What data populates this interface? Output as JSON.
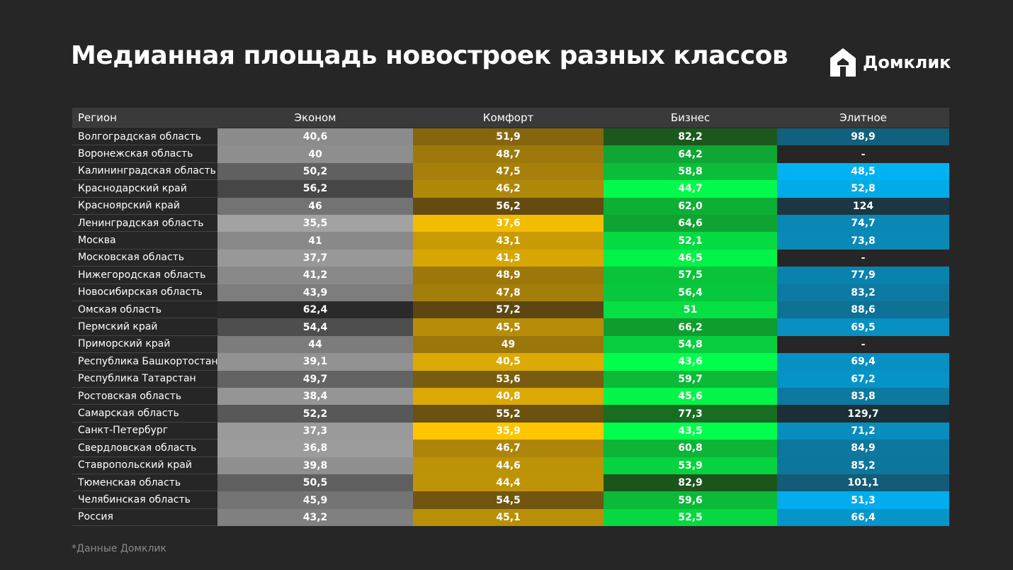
{
  "header": {
    "title": "Медианная площадь новостроек разных классов",
    "logo": "Домклик"
  },
  "table": {
    "columns": [
      "Регион",
      "Эконом",
      "Комфорт",
      "Бизнес",
      "Элитное"
    ],
    "rows": [
      [
        "Волгоградская область",
        "40,6",
        "51,9",
        "82,2",
        "98,9"
      ],
      [
        "Воронежская область",
        "40",
        "48,7",
        "64,2",
        "-"
      ],
      [
        "Калининградская область",
        "50,2",
        "47,5",
        "58,8",
        "48,5"
      ],
      [
        "Краснодарский край",
        "56,2",
        "46,2",
        "44,7",
        "52,8"
      ],
      [
        "Красноярский край",
        "46",
        "56,2",
        "62,0",
        "124"
      ],
      [
        "Ленинградская область",
        "35,5",
        "37,6",
        "64,6",
        "74,7"
      ],
      [
        "Москва",
        "41",
        "43,1",
        "52,1",
        "73,8"
      ],
      [
        "Московская область",
        "37,7",
        "41,3",
        "46,5",
        "-"
      ],
      [
        "Нижегородская область",
        "41,2",
        "48,9",
        "57,5",
        "77,9"
      ],
      [
        "Новосибирская область",
        "43,9",
        "47,8",
        "56,4",
        "83,2"
      ],
      [
        "Омская область",
        "62,4",
        "57,2",
        "51",
        "88,6"
      ],
      [
        "Пермский край",
        "54,4",
        "45,5",
        "66,2",
        "69,5"
      ],
      [
        "Приморский край",
        "44",
        "49",
        "54,8",
        "-"
      ],
      [
        "Республика Башкортостан",
        "39,1",
        "40,5",
        "43,6",
        "69,4"
      ],
      [
        "Республика Татарстан",
        "49,7",
        "53,6",
        "59,7",
        "67,2"
      ],
      [
        "Ростовская область",
        "38,4",
        "40,8",
        "45,6",
        "83,8"
      ],
      [
        "Самарская область",
        "52,2",
        "55,2",
        "77,3",
        "129,7"
      ],
      [
        "Санкт-Петербург",
        "37,3",
        "35,9",
        "43,5",
        "71,2"
      ],
      [
        "Свердловская область",
        "36,8",
        "46,7",
        "60,8",
        "84,9"
      ],
      [
        "Ставропольский край",
        "39,8",
        "44,6",
        "53,9",
        "85,2"
      ],
      [
        "Тюменская область",
        "50,5",
        "44,4",
        "82,9",
        "101,1"
      ],
      [
        "Челябинская область",
        "45,9",
        "54,5",
        "59,6",
        "51,3"
      ],
      [
        "Россия",
        "43,2",
        "45,1",
        "52,5",
        "66,4"
      ]
    ]
  },
  "footnote": "*Данные Домклик"
}
